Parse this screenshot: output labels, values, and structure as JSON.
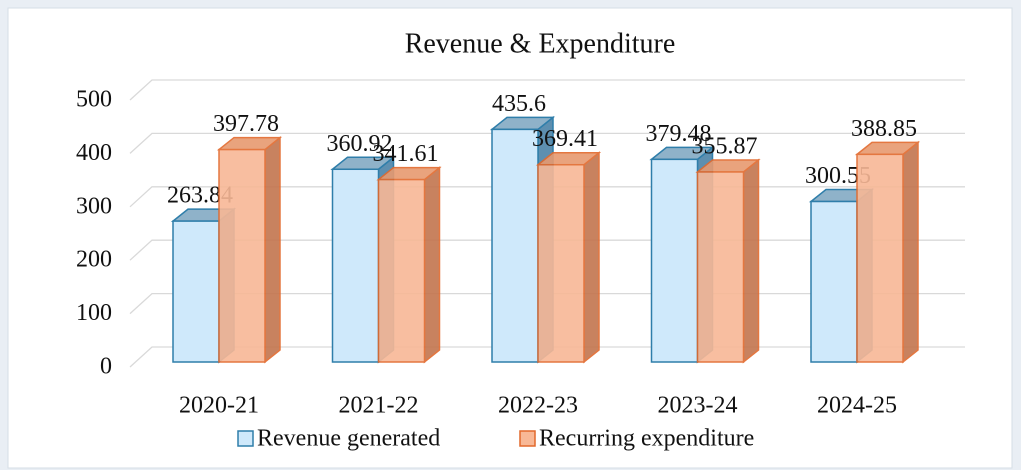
{
  "chart_data": {
    "type": "bar3d",
    "title": "Revenue & Expenditure",
    "categories": [
      "2020-21",
      "2021-22",
      "2022-23",
      "2023-24",
      "2024-25"
    ],
    "series": [
      {
        "name": "Revenue generated",
        "color": "#cfe9fb",
        "values": [
          263.84,
          360.92,
          435.6,
          379.48,
          300.55
        ]
      },
      {
        "name": "Recurring expenditure",
        "color": "#f8b896",
        "values": [
          397.78,
          341.61,
          369.41,
          355.87,
          388.85
        ]
      }
    ],
    "ylim": [
      0,
      500
    ],
    "yticks": [
      0,
      100,
      200,
      300,
      400,
      500
    ],
    "grid": true,
    "legend": "bottom"
  }
}
